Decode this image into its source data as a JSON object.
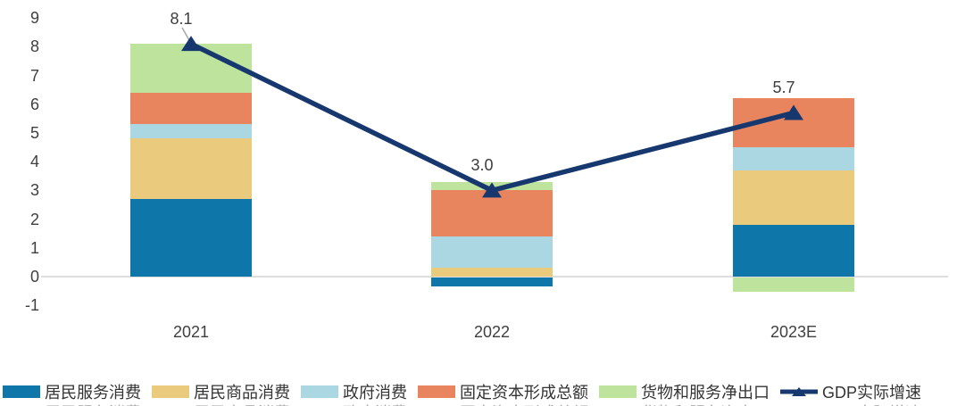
{
  "chart_data": {
    "type": "bar",
    "subtype": "stacked-bar-with-line-overlay",
    "title": "",
    "xlabel": "",
    "ylabel": "",
    "categories": [
      "2021",
      "2022",
      "2023E"
    ],
    "series": [
      {
        "name": "居民服务消费",
        "color": "#0E76A8",
        "values": [
          2.7,
          -0.3,
          1.8
        ]
      },
      {
        "name": "居民商品消费",
        "color": "#EACB7D",
        "values": [
          2.1,
          0.3,
          1.9
        ]
      },
      {
        "name": "政府消费",
        "color": "#ABD7E2",
        "values": [
          0.5,
          1.1,
          0.8
        ]
      },
      {
        "name": "固定资本形成总额",
        "color": "#E8845E",
        "values": [
          1.1,
          1.6,
          1.7
        ]
      },
      {
        "name": "货物和服务净出口",
        "color": "#BDE39C",
        "values": [
          1.7,
          0.3,
          -0.5
        ]
      }
    ],
    "line_series": {
      "name": "GDP实际增速",
      "color": "#16386E",
      "values": [
        8.1,
        3.0,
        5.7
      ],
      "point_labels": [
        "8.1",
        "3.0",
        "5.7"
      ]
    },
    "y_ticks": [
      9,
      8,
      7,
      6,
      5,
      4,
      3,
      2,
      1,
      0,
      -1
    ],
    "ylim": [
      -1,
      9
    ],
    "grid": "zero-line-only",
    "legend_position": "bottom",
    "colors": {
      "zero_line": "#DEDEDE",
      "axis_text": "#404040",
      "leader_line": "#A6A6A6"
    }
  }
}
